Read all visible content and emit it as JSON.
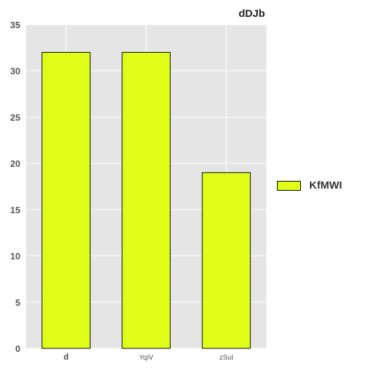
{
  "chart_data": {
    "type": "bar",
    "title": "dDJb",
    "categories": [
      "d",
      "YqiV",
      "zSuI"
    ],
    "series": [
      {
        "name": "KfMWI",
        "values": [
          32,
          32,
          19
        ],
        "color": "#dfff19"
      }
    ],
    "xlabel": "",
    "ylabel": "",
    "ylim": [
      0,
      35
    ],
    "yticks": [
      "0",
      "5",
      "10",
      "15",
      "20",
      "25",
      "30",
      "35"
    ],
    "grid": true,
    "legend_position": "right",
    "background_color": "#e5e5e5",
    "grid_color": "#ffffff"
  }
}
